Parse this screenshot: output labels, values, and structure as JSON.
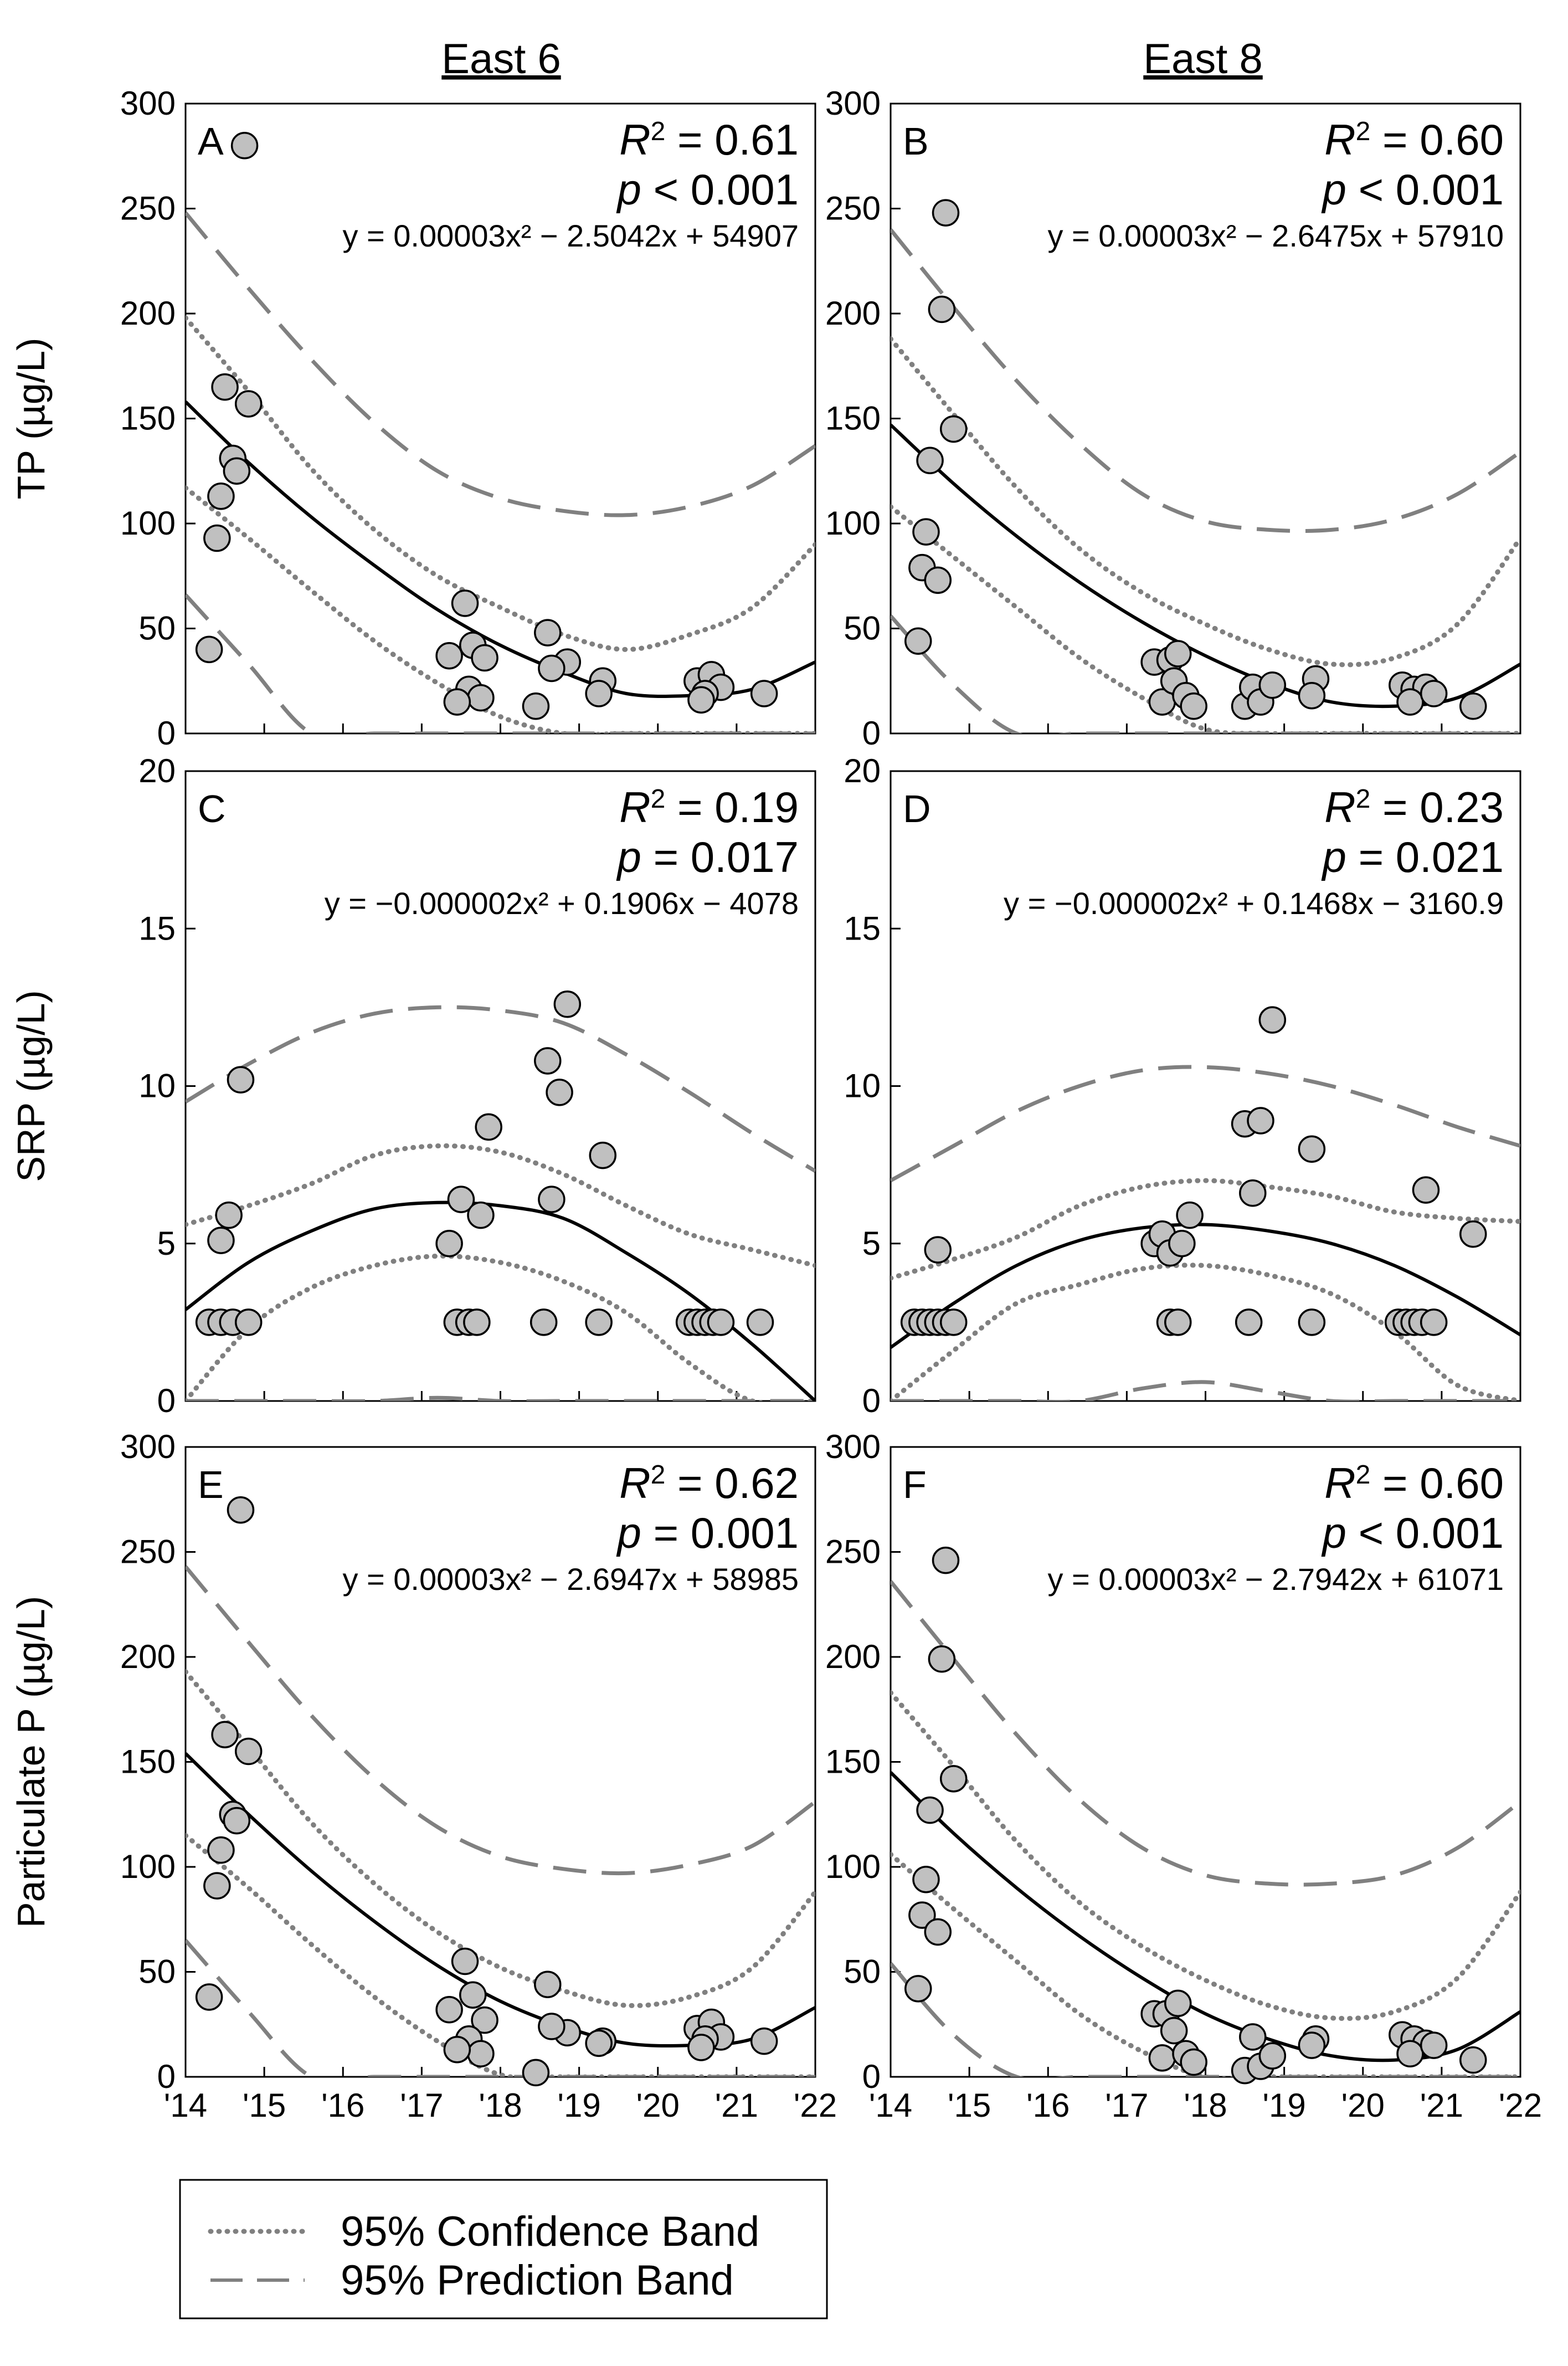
{
  "figure": {
    "columns": [
      "East 6",
      "East 8"
    ],
    "x_tick_labels": [
      "'14",
      "'15",
      "'16",
      "'17",
      "'18",
      "'19",
      "'20",
      "'21",
      "'22"
    ],
    "legend": {
      "confidence": "95% Confidence Band",
      "prediction": "95% Prediction Band"
    },
    "colors": {
      "marker_fill": "#c0c0c0",
      "fit_line": "#000000",
      "band": "#808080"
    }
  },
  "chart_data": [
    {
      "type": "scatter",
      "panel": "A",
      "site": "East 6",
      "variable": "TP",
      "ylabel": "TP (µg/L)",
      "ylim": [
        0,
        300
      ],
      "yticks": [
        0,
        50,
        100,
        150,
        200,
        250,
        300
      ],
      "xlim": [
        2014,
        2022
      ],
      "r2_label": "= 0.61",
      "p_label": "< 0.001",
      "equation": "y = 0.00003x² − 2.5042x + 54907",
      "points": [
        [
          2014.75,
          280
        ],
        [
          2014.5,
          165
        ],
        [
          2014.8,
          157
        ],
        [
          2014.6,
          131
        ],
        [
          2014.65,
          125
        ],
        [
          2014.45,
          113
        ],
        [
          2014.4,
          93
        ],
        [
          2014.3,
          40
        ],
        [
          2017.55,
          62
        ],
        [
          2017.65,
          42
        ],
        [
          2017.35,
          37
        ],
        [
          2017.8,
          36
        ],
        [
          2017.6,
          21
        ],
        [
          2017.75,
          17
        ],
        [
          2017.45,
          15
        ],
        [
          2018.6,
          48
        ],
        [
          2018.85,
          34
        ],
        [
          2018.65,
          31
        ],
        [
          2018.45,
          13
        ],
        [
          2019.3,
          25
        ],
        [
          2019.25,
          19
        ],
        [
          2020.5,
          25
        ],
        [
          2020.68,
          28
        ],
        [
          2020.8,
          22
        ],
        [
          2020.6,
          19
        ],
        [
          2020.55,
          16
        ],
        [
          2021.35,
          19
        ]
      ],
      "fit": [
        158,
        129,
        103,
        80,
        59,
        42,
        29,
        19,
        18,
        21,
        34
      ],
      "conf_upper": [
        198,
        163,
        126,
        97,
        75,
        60,
        47,
        40,
        47,
        60,
        90
      ],
      "conf_lower": [
        117,
        93,
        68,
        44,
        24,
        8,
        0,
        0,
        0,
        0,
        0
      ],
      "pred_upper": [
        248,
        212,
        178,
        148,
        125,
        112,
        106,
        104,
        108,
        118,
        137
      ],
      "pred_lower": [
        66,
        33,
        0,
        0,
        0,
        0,
        0,
        0,
        0,
        0,
        0
      ]
    },
    {
      "type": "scatter",
      "panel": "B",
      "site": "East 8",
      "variable": "TP",
      "ylabel": "TP (µg/L)",
      "ylim": [
        0,
        300
      ],
      "yticks": [
        0,
        50,
        100,
        150,
        200,
        250,
        300
      ],
      "xlim": [
        2014,
        2022
      ],
      "r2_label": "= 0.60",
      "p_label": "< 0.001",
      "equation": "y = 0.00003x² − 2.6475x + 57910",
      "points": [
        [
          2014.7,
          248
        ],
        [
          2014.65,
          202
        ],
        [
          2014.8,
          145
        ],
        [
          2014.5,
          130
        ],
        [
          2014.45,
          96
        ],
        [
          2014.4,
          79
        ],
        [
          2014.6,
          73
        ],
        [
          2014.35,
          44
        ],
        [
          2017.35,
          34
        ],
        [
          2017.55,
          35
        ],
        [
          2017.65,
          38
        ],
        [
          2017.45,
          15
        ],
        [
          2017.6,
          25
        ],
        [
          2017.75,
          18
        ],
        [
          2017.85,
          13
        ],
        [
          2018.5,
          13
        ],
        [
          2018.6,
          22
        ],
        [
          2018.7,
          15
        ],
        [
          2018.85,
          23
        ],
        [
          2019.4,
          26
        ],
        [
          2019.35,
          18
        ],
        [
          2020.5,
          23
        ],
        [
          2020.65,
          21
        ],
        [
          2020.8,
          22
        ],
        [
          2020.6,
          15
        ],
        [
          2020.9,
          19
        ],
        [
          2021.4,
          13
        ]
      ],
      "fit": [
        147,
        119,
        94,
        72,
        53,
        37,
        24,
        15,
        13,
        17,
        33
      ],
      "conf_upper": [
        188,
        152,
        117,
        88,
        67,
        52,
        40,
        33,
        36,
        52,
        93
      ],
      "conf_lower": [
        108,
        84,
        60,
        36,
        17,
        2,
        0,
        0,
        0,
        0,
        0
      ],
      "pred_upper": [
        240,
        203,
        168,
        138,
        114,
        101,
        97,
        97,
        102,
        114,
        134
      ],
      "pred_lower": [
        56,
        23,
        0,
        0,
        0,
        0,
        0,
        0,
        0,
        0,
        0
      ]
    },
    {
      "type": "scatter",
      "panel": "C",
      "site": "East 6",
      "variable": "SRP",
      "ylabel": "SRP (µg/L)",
      "ylim": [
        0,
        20
      ],
      "yticks": [
        0,
        5,
        10,
        15,
        20
      ],
      "xlim": [
        2014,
        2022
      ],
      "r2_label": "= 0.19",
      "p_label": "= 0.017",
      "equation": "y = −0.000002x² + 0.1906x − 4078",
      "points": [
        [
          2014.7,
          10.2
        ],
        [
          2014.55,
          5.9
        ],
        [
          2014.45,
          5.1
        ],
        [
          2014.3,
          2.5
        ],
        [
          2014.45,
          2.5
        ],
        [
          2014.6,
          2.5
        ],
        [
          2014.8,
          2.5
        ],
        [
          2017.5,
          6.4
        ],
        [
          2017.75,
          5.9
        ],
        [
          2017.35,
          5.0
        ],
        [
          2017.85,
          8.7
        ],
        [
          2017.45,
          2.5
        ],
        [
          2017.6,
          2.5
        ],
        [
          2017.7,
          2.5
        ],
        [
          2018.6,
          10.8
        ],
        [
          2018.85,
          12.6
        ],
        [
          2018.75,
          9.8
        ],
        [
          2018.65,
          6.4
        ],
        [
          2019.3,
          7.8
        ],
        [
          2018.55,
          2.5
        ],
        [
          2019.25,
          2.5
        ],
        [
          2020.4,
          2.5
        ],
        [
          2020.5,
          2.5
        ],
        [
          2020.6,
          2.5
        ],
        [
          2020.7,
          2.5
        ],
        [
          2020.8,
          2.5
        ],
        [
          2021.3,
          2.5
        ]
      ],
      "fit": [
        2.9,
        4.4,
        5.4,
        6.1,
        6.3,
        6.2,
        5.8,
        4.7,
        3.4,
        1.8,
        0.0
      ],
      "conf_upper": [
        5.6,
        6.2,
        6.9,
        7.8,
        8.1,
        7.9,
        7.2,
        6.2,
        5.3,
        4.8,
        4.3
      ],
      "conf_lower": [
        0.0,
        2.3,
        3.6,
        4.3,
        4.6,
        4.4,
        3.8,
        2.8,
        1.2,
        0.0,
        0.0
      ],
      "pred_upper": [
        9.5,
        10.7,
        11.7,
        12.3,
        12.5,
        12.4,
        12.0,
        11.0,
        9.8,
        8.5,
        7.3
      ],
      "pred_lower": [
        0.0,
        0.0,
        0.0,
        0.0,
        0.1,
        0.0,
        0.0,
        0.0,
        0.0,
        0.0,
        0.0
      ]
    },
    {
      "type": "scatter",
      "panel": "D",
      "site": "East 8",
      "variable": "SRP",
      "ylabel": "SRP (µg/L)",
      "ylim": [
        0,
        20
      ],
      "yticks": [
        0,
        5,
        10,
        15,
        20
      ],
      "xlim": [
        2014,
        2022
      ],
      "r2_label": "= 0.23",
      "p_label": "= 0.021",
      "equation": "y = −0.000002x² + 0.1468x − 3160.9",
      "points": [
        [
          2014.6,
          4.8
        ],
        [
          2014.3,
          2.5
        ],
        [
          2014.4,
          2.5
        ],
        [
          2014.5,
          2.5
        ],
        [
          2014.6,
          2.5
        ],
        [
          2014.7,
          2.5
        ],
        [
          2014.8,
          2.5
        ],
        [
          2017.35,
          5.0
        ],
        [
          2017.45,
          5.3
        ],
        [
          2017.55,
          4.7
        ],
        [
          2017.7,
          5.0
        ],
        [
          2017.8,
          5.9
        ],
        [
          2017.55,
          2.5
        ],
        [
          2017.65,
          2.5
        ],
        [
          2018.5,
          8.8
        ],
        [
          2018.7,
          8.9
        ],
        [
          2018.85,
          12.1
        ],
        [
          2018.6,
          6.6
        ],
        [
          2019.35,
          8.0
        ],
        [
          2018.55,
          2.5
        ],
        [
          2019.35,
          2.5
        ],
        [
          2020.45,
          2.5
        ],
        [
          2020.55,
          2.5
        ],
        [
          2020.65,
          2.5
        ],
        [
          2020.75,
          2.5
        ],
        [
          2020.9,
          2.5
        ],
        [
          2020.8,
          6.7
        ],
        [
          2021.4,
          5.3
        ]
      ],
      "fit": [
        1.7,
        3.1,
        4.3,
        5.1,
        5.5,
        5.6,
        5.4,
        5.0,
        4.3,
        3.3,
        2.1
      ],
      "conf_upper": [
        3.9,
        4.5,
        5.2,
        6.2,
        6.8,
        7.0,
        6.8,
        6.5,
        6.0,
        5.8,
        5.7
      ],
      "conf_lower": [
        0.0,
        1.6,
        3.1,
        3.7,
        4.2,
        4.3,
        4.0,
        3.4,
        2.2,
        0.5,
        0.0
      ],
      "pred_upper": [
        7.0,
        8.1,
        9.2,
        10.0,
        10.5,
        10.6,
        10.4,
        10.0,
        9.4,
        8.7,
        8.1
      ],
      "pred_lower": [
        0.0,
        0.0,
        0.0,
        0.0,
        0.4,
        0.6,
        0.3,
        0.0,
        0.0,
        0.0,
        0.0
      ]
    },
    {
      "type": "scatter",
      "panel": "E",
      "site": "East 6",
      "variable": "Particulate P",
      "ylabel": "Particulate P (µg/L)",
      "ylim": [
        0,
        300
      ],
      "yticks": [
        0,
        50,
        100,
        150,
        200,
        250,
        300
      ],
      "xlim": [
        2014,
        2022
      ],
      "r2_label": "= 0.62",
      "p_label": "= 0.001",
      "equation": "y = 0.00003x² − 2.6947x + 58985",
      "points": [
        [
          2014.7,
          270
        ],
        [
          2014.5,
          163
        ],
        [
          2014.8,
          155
        ],
        [
          2014.6,
          125
        ],
        [
          2014.65,
          122
        ],
        [
          2014.45,
          108
        ],
        [
          2014.4,
          91
        ],
        [
          2014.3,
          38
        ],
        [
          2017.55,
          55
        ],
        [
          2017.65,
          39
        ],
        [
          2017.35,
          32
        ],
        [
          2017.8,
          27
        ],
        [
          2017.6,
          18
        ],
        [
          2017.75,
          11
        ],
        [
          2017.45,
          13
        ],
        [
          2018.6,
          44
        ],
        [
          2018.85,
          21
        ],
        [
          2018.65,
          24
        ],
        [
          2018.45,
          2
        ],
        [
          2019.3,
          17
        ],
        [
          2019.25,
          16
        ],
        [
          2020.5,
          23
        ],
        [
          2020.68,
          26
        ],
        [
          2020.8,
          19
        ],
        [
          2020.6,
          18
        ],
        [
          2020.55,
          14
        ],
        [
          2021.35,
          17
        ]
      ],
      "fit": [
        154,
        125,
        98,
        74,
        53,
        36,
        24,
        16,
        15,
        18,
        33
      ],
      "conf_upper": [
        193,
        157,
        121,
        92,
        69,
        52,
        41,
        34,
        38,
        52,
        88
      ],
      "conf_lower": [
        115,
        90,
        63,
        38,
        17,
        1,
        0,
        0,
        0,
        0,
        0
      ],
      "pred_upper": [
        243,
        207,
        172,
        142,
        119,
        105,
        99,
        97,
        101,
        110,
        131
      ],
      "pred_lower": [
        65,
        31,
        0,
        0,
        0,
        0,
        0,
        0,
        0,
        0,
        0
      ]
    },
    {
      "type": "scatter",
      "panel": "F",
      "site": "East 8",
      "variable": "Particulate P",
      "ylabel": "Particulate P (µg/L)",
      "ylim": [
        0,
        300
      ],
      "yticks": [
        0,
        50,
        100,
        150,
        200,
        250,
        300
      ],
      "xlim": [
        2014,
        2022
      ],
      "r2_label": "= 0.60",
      "p_label": "< 0.001",
      "equation": "y = 0.00003x² − 2.7942x + 61071",
      "points": [
        [
          2014.7,
          246
        ],
        [
          2014.65,
          199
        ],
        [
          2014.8,
          142
        ],
        [
          2014.5,
          127
        ],
        [
          2014.45,
          94
        ],
        [
          2014.4,
          77
        ],
        [
          2014.6,
          69
        ],
        [
          2014.35,
          42
        ],
        [
          2017.35,
          30
        ],
        [
          2017.5,
          30
        ],
        [
          2017.65,
          35
        ],
        [
          2017.45,
          9
        ],
        [
          2017.6,
          22
        ],
        [
          2017.75,
          11
        ],
        [
          2017.85,
          7
        ],
        [
          2018.5,
          3
        ],
        [
          2018.6,
          19
        ],
        [
          2018.7,
          5
        ],
        [
          2018.85,
          10
        ],
        [
          2019.4,
          18
        ],
        [
          2019.35,
          15
        ],
        [
          2020.5,
          20
        ],
        [
          2020.65,
          18
        ],
        [
          2020.8,
          16
        ],
        [
          2020.6,
          11
        ],
        [
          2020.9,
          15
        ],
        [
          2021.4,
          8
        ]
      ],
      "fit": [
        145,
        116,
        90,
        67,
        47,
        30,
        18,
        10,
        8,
        13,
        31
      ],
      "conf_upper": [
        183,
        148,
        112,
        83,
        62,
        46,
        34,
        28,
        31,
        47,
        88
      ],
      "conf_lower": [
        106,
        80,
        55,
        30,
        12,
        0,
        0,
        0,
        0,
        0,
        0
      ],
      "pred_upper": [
        236,
        199,
        163,
        132,
        109,
        96,
        92,
        92,
        96,
        109,
        131
      ],
      "pred_lower": [
        54,
        20,
        0,
        0,
        0,
        0,
        0,
        0,
        0,
        0,
        0
      ]
    }
  ]
}
